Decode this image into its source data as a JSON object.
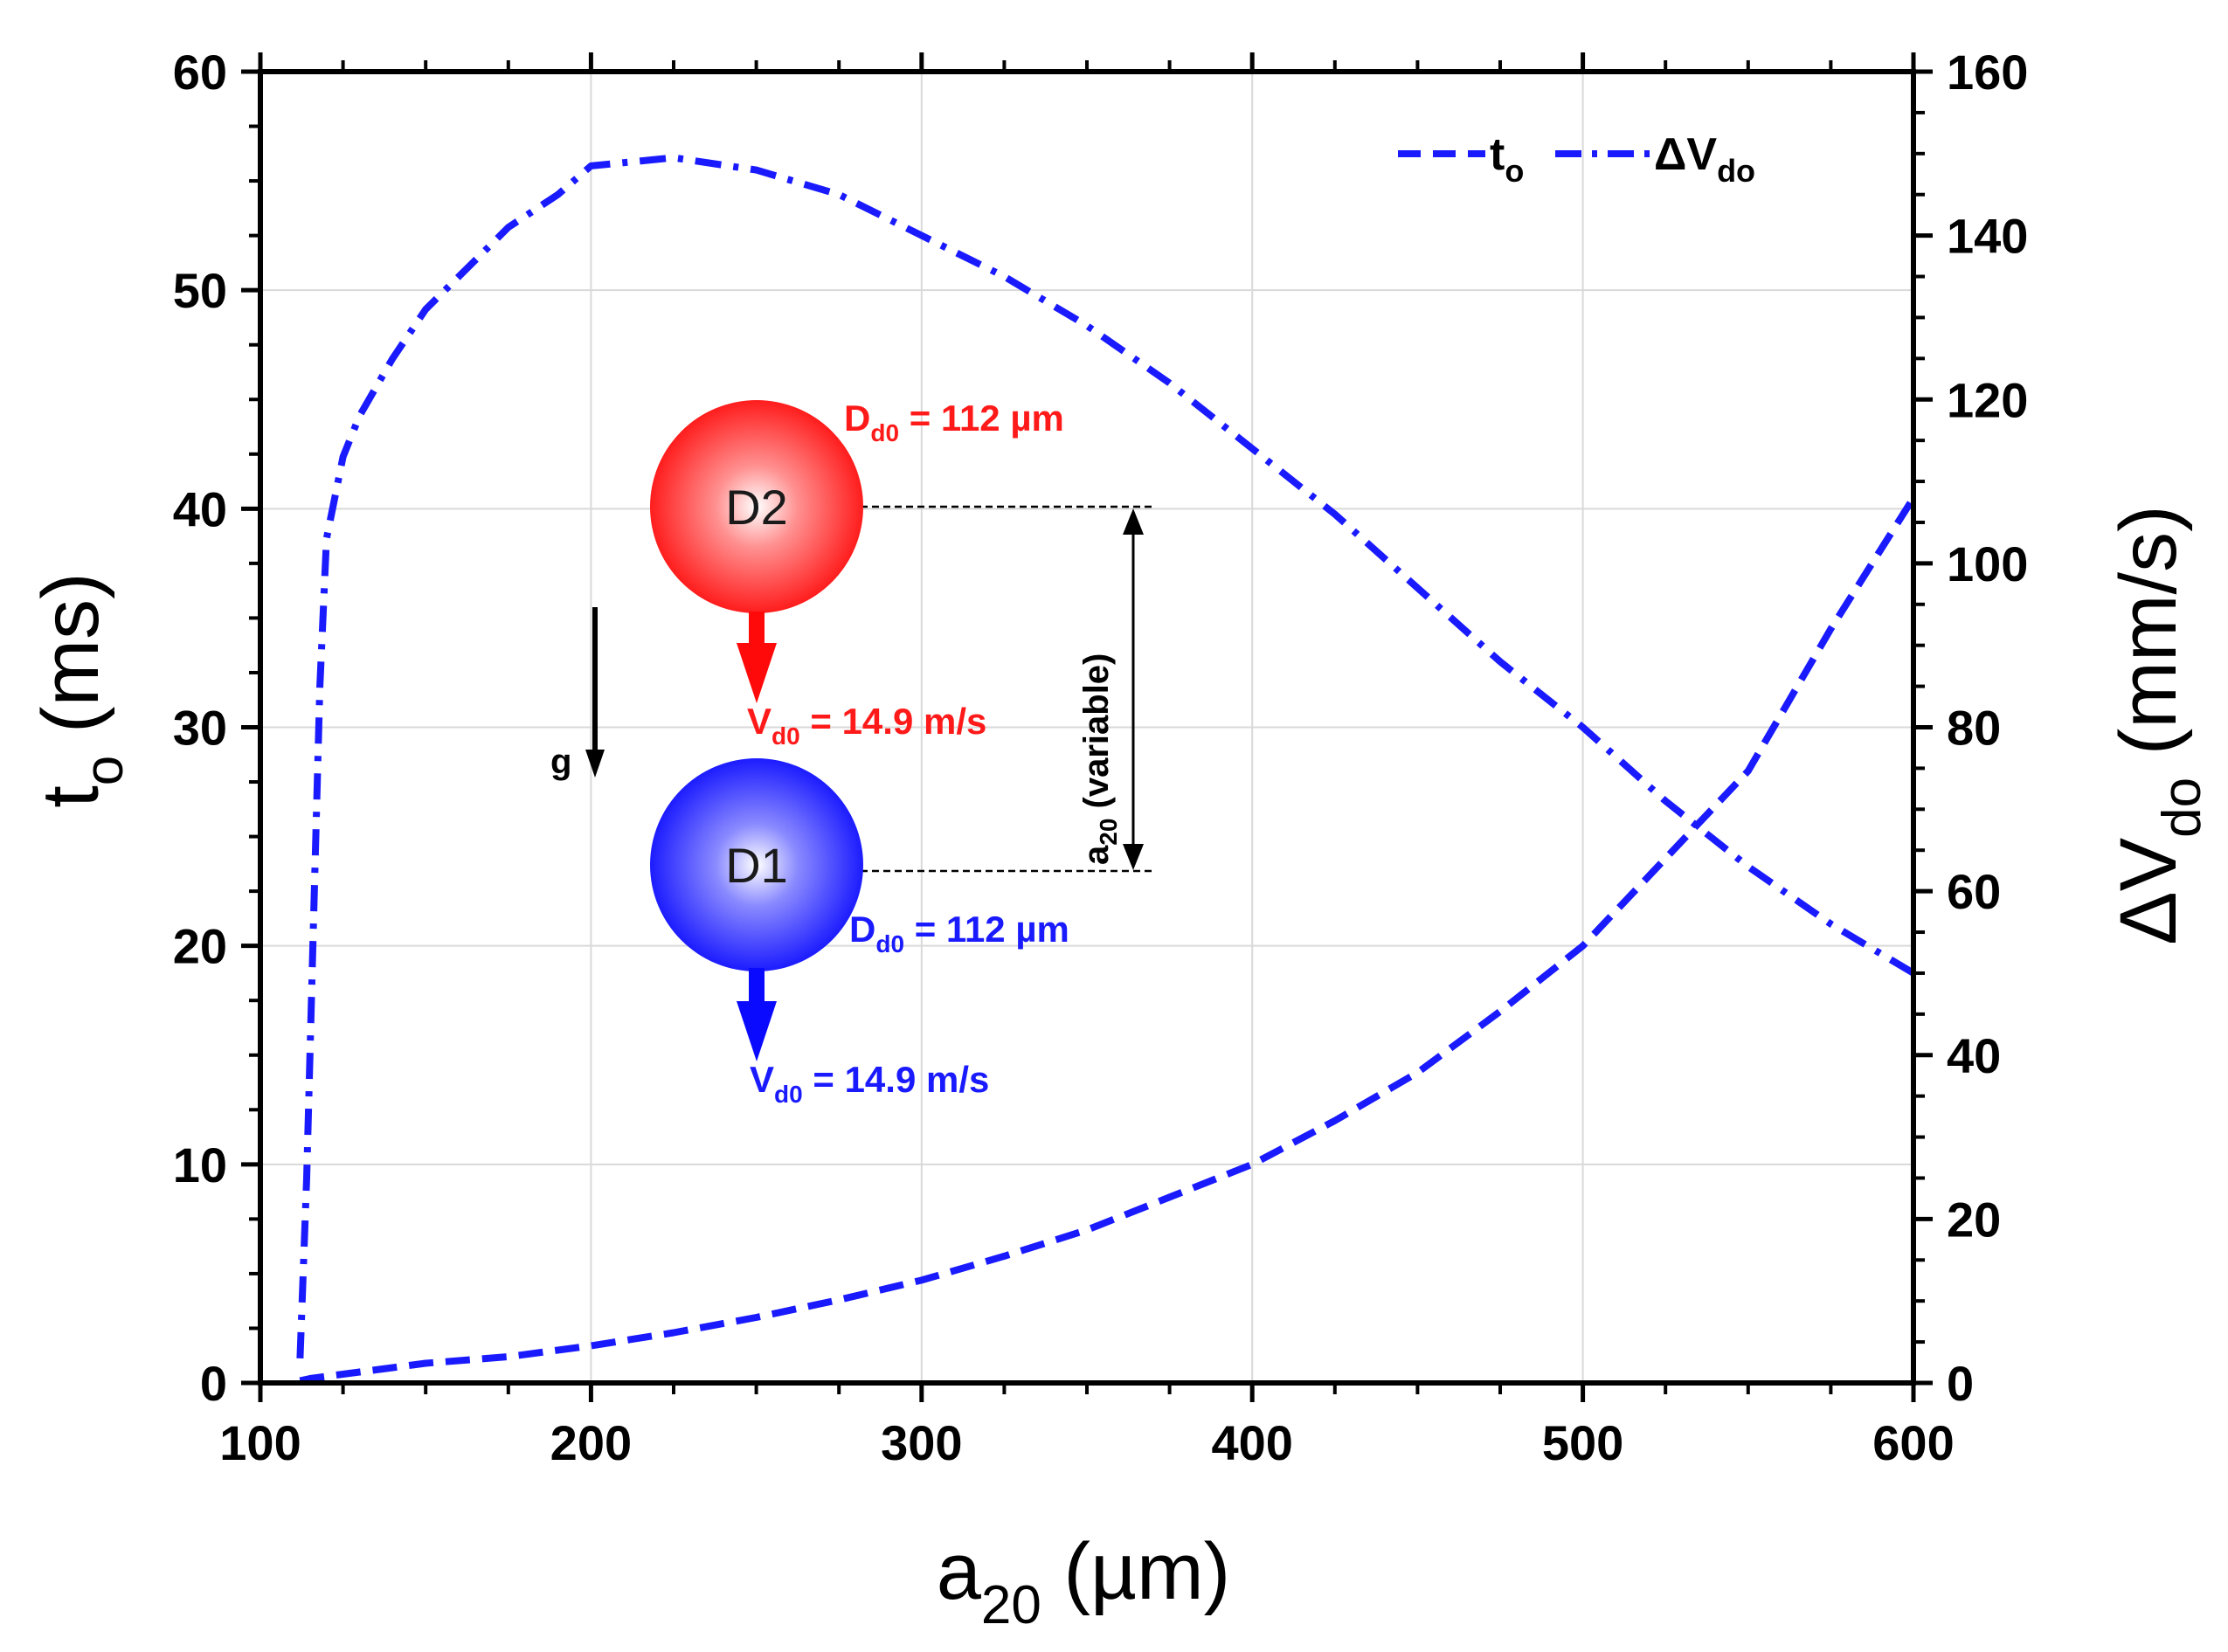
{
  "chart_data": {
    "type": "line",
    "x_axis": {
      "label_main": "a",
      "label_sub": "20",
      "label_unit": " (µm)",
      "range": [
        100,
        600
      ],
      "ticks": [
        "100",
        "200",
        "300",
        "400",
        "500",
        "600"
      ],
      "tick_values": [
        100,
        200,
        300,
        400,
        500,
        600
      ]
    },
    "y_left_axis": {
      "label_main": "t",
      "label_sub": "o",
      "label_unit": " (ms)",
      "range": [
        0,
        60
      ],
      "ticks": [
        "0",
        "10",
        "20",
        "30",
        "40",
        "50",
        "60"
      ],
      "tick_values": [
        0,
        10,
        20,
        30,
        40,
        50,
        60
      ]
    },
    "y_right_axis": {
      "label_main": "ΔV",
      "label_sub": "do",
      "label_unit": " (mm/s)",
      "range": [
        0,
        160
      ],
      "ticks": [
        "0",
        "20",
        "40",
        "60",
        "80",
        "100",
        "120",
        "140",
        "160"
      ],
      "tick_values": [
        0,
        20,
        40,
        60,
        80,
        100,
        120,
        140,
        160
      ]
    },
    "grid": true,
    "legend_position": "top-right",
    "series": [
      {
        "name": "t_o",
        "legend_main": "t",
        "legend_sub": "o",
        "axis": "left",
        "style": "dash",
        "color": "#1a1aff",
        "x": [
          112,
          115,
          130,
          150,
          175,
          200,
          225,
          250,
          275,
          300,
          325,
          350,
          375,
          400,
          425,
          450,
          475,
          500,
          525,
          550,
          575,
          600
        ],
        "y": [
          0.1,
          0.2,
          0.5,
          0.9,
          1.2,
          1.7,
          2.3,
          3.0,
          3.8,
          4.7,
          5.8,
          7.0,
          8.5,
          10.0,
          12.0,
          14.2,
          17.0,
          20.0,
          24.0,
          28.0,
          34.5,
          40.5
        ]
      },
      {
        "name": "ΔV_do",
        "legend_main": "ΔV",
        "legend_sub": "do",
        "axis": "right",
        "style": "dash-dot",
        "color": "#1a1aff",
        "x": [
          112,
          114,
          116,
          118,
          120,
          125,
          130,
          140,
          150,
          165,
          175,
          190,
          200,
          225,
          250,
          275,
          300,
          325,
          350,
          375,
          400,
          425,
          450,
          475,
          500,
          525,
          550,
          575,
          600
        ],
        "y": [
          3,
          25,
          55,
          85,
          103,
          113,
          118,
          125,
          131,
          137,
          141,
          145,
          148.5,
          149.5,
          148,
          145,
          140,
          135,
          129,
          122,
          114,
          106,
          97,
          88,
          80,
          71,
          63,
          56,
          50
        ]
      }
    ],
    "annotations": {
      "d2_label": "D2",
      "d1_label": "D1",
      "d2_diameter_main": "D",
      "d2_diameter_sub": "d0",
      "d2_diameter_value": " = 112 µm",
      "d1_diameter_main": "D",
      "d1_diameter_sub": "d0",
      "d1_diameter_value": " = 112 µm",
      "d2_velocity_main": "V",
      "d2_velocity_sub": "d0",
      "d2_velocity_value": " = 14.9 m/s",
      "d1_velocity_main": "V",
      "d1_velocity_sub": "d0",
      "d1_velocity_value": " = 14.9 m/s",
      "gravity_label": "g",
      "spacing_main": "a",
      "spacing_sub": "20",
      "spacing_text": " (variable)",
      "d2_color": "#ff1a1a",
      "d1_color": "#1a1aff"
    }
  }
}
